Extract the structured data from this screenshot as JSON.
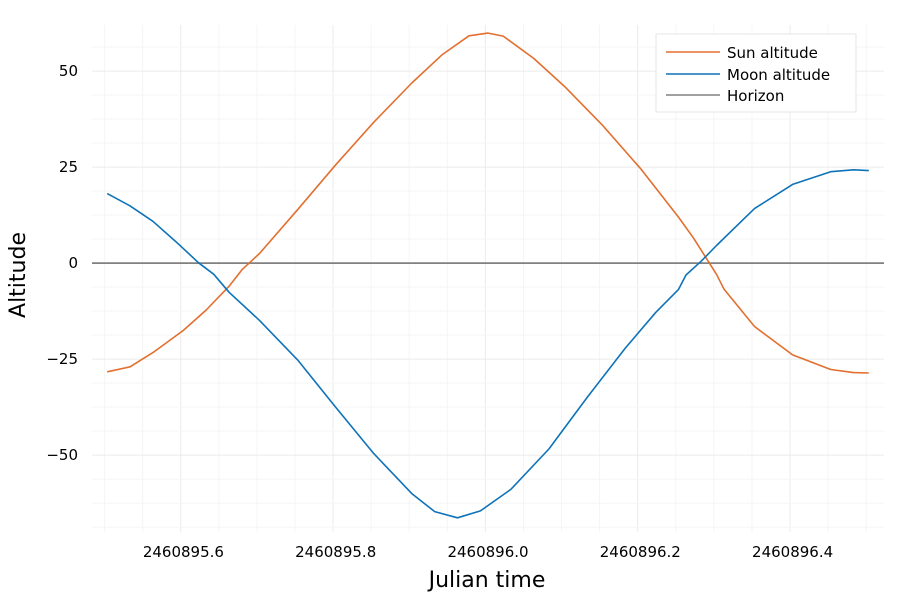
{
  "chart_data": {
    "type": "line",
    "title": "",
    "xlabel": "Julian time",
    "ylabel": "Altitude",
    "xlim": [
      2460895.48,
      2460896.52
    ],
    "ylim": [
      -70,
      62
    ],
    "x_ticks": [
      2460895.6,
      2460895.8,
      2460896.0,
      2460896.2,
      2460896.4
    ],
    "x_tick_labels": [
      "2460895.6",
      "2460895.8",
      "2460896.0",
      "2460896.2",
      "2460896.4"
    ],
    "y_ticks": [
      -50,
      -25,
      0,
      25,
      50
    ],
    "y_tick_labels": [
      "−50",
      "−25",
      "0",
      "25",
      "50"
    ],
    "grid": true,
    "legend_position": "top-right",
    "series": [
      {
        "name": "Sun altitude",
        "color": "#e26f2e",
        "points": [
          [
            2460895.5,
            -28.3
          ],
          [
            2460895.53,
            -27.0
          ],
          [
            2460895.56,
            -23.3
          ],
          [
            2460895.6,
            -17.5
          ],
          [
            2460895.63,
            -12.2
          ],
          [
            2460895.66,
            -6.0
          ],
          [
            2460895.677,
            -1.7
          ],
          [
            2460895.7,
            2.5
          ],
          [
            2460895.75,
            13.9
          ],
          [
            2460895.8,
            25.6
          ],
          [
            2460895.85,
            36.7
          ],
          [
            2460895.9,
            46.9
          ],
          [
            2460895.94,
            54.3
          ],
          [
            2460895.975,
            59.2
          ],
          [
            2460896.0,
            59.9
          ],
          [
            2460896.02,
            59.1
          ],
          [
            2460896.06,
            53.3
          ],
          [
            2460896.1,
            46.1
          ],
          [
            2460896.15,
            36.0
          ],
          [
            2460896.2,
            24.7
          ],
          [
            2460896.25,
            12.0
          ],
          [
            2460896.27,
            6.5
          ],
          [
            2460896.3,
            -2.9
          ],
          [
            2460896.31,
            -6.8
          ],
          [
            2460896.35,
            -16.5
          ],
          [
            2460896.4,
            -23.9
          ],
          [
            2460896.45,
            -27.7
          ],
          [
            2460896.48,
            -28.5
          ],
          [
            2460896.5,
            -28.6
          ]
        ]
      },
      {
        "name": "Moon altitude",
        "color": "#0e73b8",
        "points": [
          [
            2460895.5,
            18.1
          ],
          [
            2460895.53,
            14.9
          ],
          [
            2460895.56,
            10.9
          ],
          [
            2460895.59,
            5.6
          ],
          [
            2460895.62,
            0.1
          ],
          [
            2460895.64,
            -2.9
          ],
          [
            2460895.66,
            -7.6
          ],
          [
            2460895.7,
            -14.9
          ],
          [
            2460895.75,
            -25.2
          ],
          [
            2460895.8,
            -37.5
          ],
          [
            2460895.85,
            -49.6
          ],
          [
            2460895.9,
            -60.0
          ],
          [
            2460895.93,
            -64.7
          ],
          [
            2460895.96,
            -66.3
          ],
          [
            2460895.99,
            -64.5
          ],
          [
            2460896.03,
            -58.9
          ],
          [
            2460896.08,
            -48.4
          ],
          [
            2460896.13,
            -35.0
          ],
          [
            2460896.18,
            -22.2
          ],
          [
            2460896.22,
            -12.9
          ],
          [
            2460896.25,
            -6.9
          ],
          [
            2460896.26,
            -3.1
          ],
          [
            2460896.28,
            0.5
          ],
          [
            2460896.3,
            4.6
          ],
          [
            2460896.35,
            14.2
          ],
          [
            2460896.4,
            20.5
          ],
          [
            2460896.45,
            23.8
          ],
          [
            2460896.48,
            24.3
          ],
          [
            2460896.5,
            24.1
          ]
        ]
      },
      {
        "name": "Horizon",
        "color": "#808080",
        "points": [
          [
            2460895.48,
            0
          ],
          [
            2460896.52,
            0
          ]
        ]
      }
    ]
  }
}
